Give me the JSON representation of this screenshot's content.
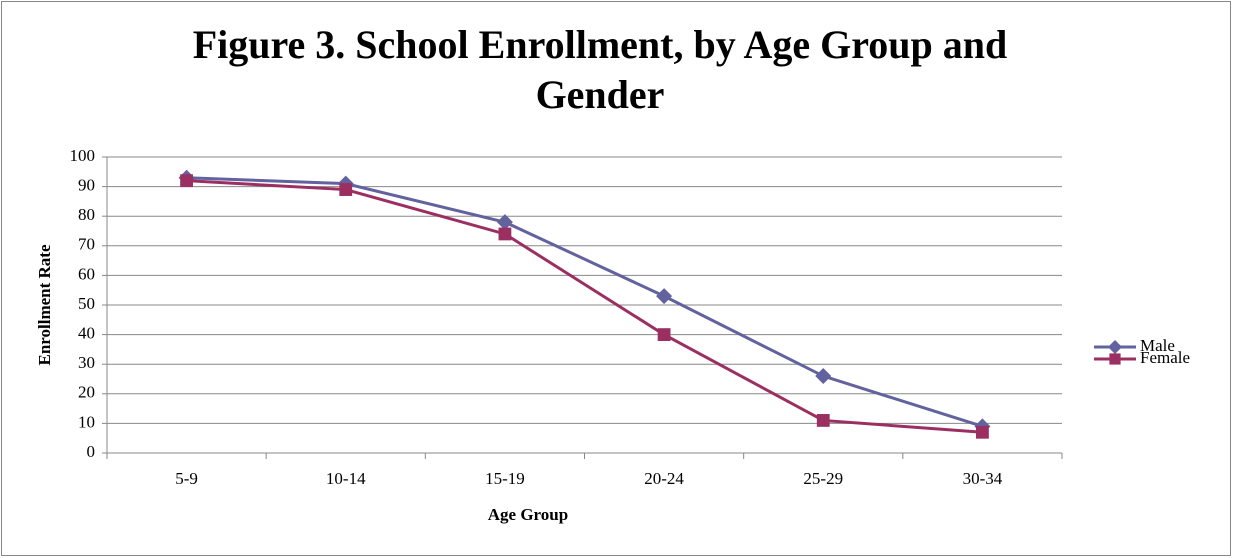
{
  "chart_data": {
    "type": "line",
    "title": "Figure 3. School Enrollment, by Age Group and Gender",
    "x_label": "Age Group",
    "y_label": "Enrollment Rate",
    "categories": [
      "5-9",
      "10-14",
      "15-19",
      "20-24",
      "25-29",
      "30-34"
    ],
    "series": [
      {
        "name": "Male",
        "color": "#62629f",
        "marker": "diamond",
        "values": [
          93,
          91,
          78,
          53,
          26,
          9
        ]
      },
      {
        "name": "Female",
        "color": "#9b2f62",
        "marker": "square",
        "values": [
          92,
          89,
          74,
          40,
          11,
          7
        ]
      }
    ],
    "ylim": [
      0,
      100
    ],
    "yticks": [
      0,
      10,
      20,
      30,
      40,
      50,
      60,
      70,
      80,
      90,
      100
    ],
    "grid": true,
    "legend": "right"
  }
}
